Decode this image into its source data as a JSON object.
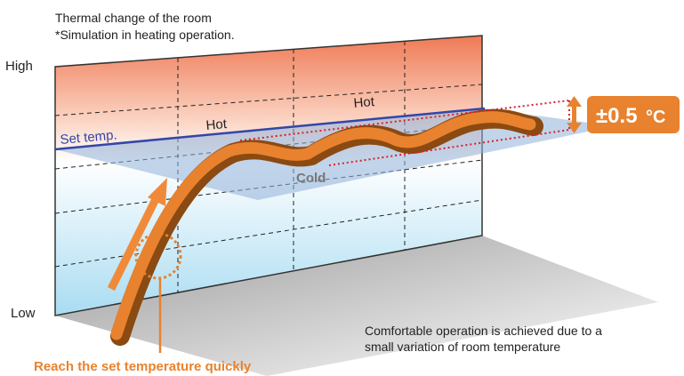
{
  "header": {
    "title": "Thermal change of the room",
    "subtitle": "*Simulation in heating operation."
  },
  "axis": {
    "high": "High",
    "low": "Low"
  },
  "labels": {
    "set_temp": "Set temp.",
    "hot": [
      "Hot",
      "Hot"
    ],
    "cold": "Cold"
  },
  "badge": {
    "value": "±0.5",
    "unit": "°C"
  },
  "captions": {
    "left": "Reach the set temperature quickly",
    "right": [
      "Comfortable operation is achieved due to a",
      "small variation of room temperature"
    ]
  }
}
